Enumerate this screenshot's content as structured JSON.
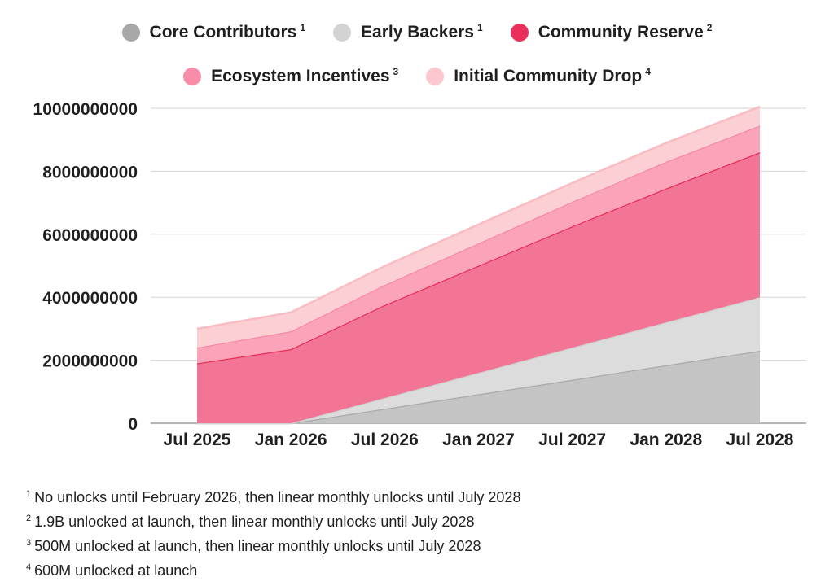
{
  "chart_data": {
    "type": "area",
    "stacked": true,
    "title": "",
    "xlabel": "",
    "ylabel": "",
    "ylim": [
      0,
      10000000000
    ],
    "y_ticks": [
      0,
      2000000000,
      4000000000,
      6000000000,
      8000000000,
      10000000000
    ],
    "y_tick_labels": [
      "0",
      "2000000000",
      "4000000000",
      "6000000000",
      "8000000000",
      "10000000000"
    ],
    "x_ticks": [
      "Jul 2025",
      "Jan 2026",
      "Jul 2026",
      "Jan 2027",
      "Jul 2027",
      "Jan 2028",
      "Jul 2028"
    ],
    "x": [
      0,
      1,
      2,
      3,
      4,
      5,
      6
    ],
    "grid": true,
    "legend_position": "top-center",
    "series": [
      {
        "name": "Core Contributors",
        "note": "1",
        "color": "#c4c4c4",
        "line_color": "#a9a9a9",
        "values": [
          0,
          0,
          460000000,
          920000000,
          1380000000,
          1840000000,
          2300000000
        ]
      },
      {
        "name": "Early Backers",
        "note": "1",
        "color": "#dcdcdc",
        "line_color": "#d0d0d0",
        "values": [
          0,
          0,
          340000000,
          680000000,
          1020000000,
          1360000000,
          1700000000
        ]
      },
      {
        "name": "Community Reserve",
        "note": "2",
        "color": "#f27595",
        "line_color": "#e8305a",
        "values": [
          1900000000,
          2350000000,
          2950000000,
          3400000000,
          3850000000,
          4250000000,
          4600000000
        ]
      },
      {
        "name": "Ecosystem Incentives",
        "note": "3",
        "color": "#fba4b9",
        "line_color": "#f58ba5",
        "values": [
          500000000,
          570000000,
          640000000,
          710000000,
          780000000,
          850000000,
          850000000
        ]
      },
      {
        "name": "Initial Community Drop",
        "note": "4",
        "color": "#fccfd3",
        "line_color": "#f9bcc3",
        "values": [
          600000000,
          600000000,
          600000000,
          600000000,
          600000000,
          600000000,
          600000000
        ]
      }
    ]
  },
  "legend": {
    "items": [
      {
        "label": "Core Contributors",
        "sup": "1",
        "color": "#a8a8a8"
      },
      {
        "label": "Early Backers",
        "sup": "1",
        "color": "#d3d3d3"
      },
      {
        "label": "Community Reserve",
        "sup": "2",
        "color": "#e8305a"
      },
      {
        "label": "Ecosystem Incentives",
        "sup": "3",
        "color": "#f98ca6"
      },
      {
        "label": "Initial Community Drop",
        "sup": "4",
        "color": "#fcc8cd"
      }
    ]
  },
  "footnotes": [
    {
      "num": "1",
      "text": "No unlocks until February 2026, then linear monthly unlocks until July 2028"
    },
    {
      "num": "2",
      "text": "1.9B unlocked at launch, then linear monthly unlocks until July 2028"
    },
    {
      "num": "3",
      "text": "500M unlocked at launch, then linear monthly unlocks until July 2028"
    },
    {
      "num": "4",
      "text": "600M unlocked at launch"
    }
  ]
}
